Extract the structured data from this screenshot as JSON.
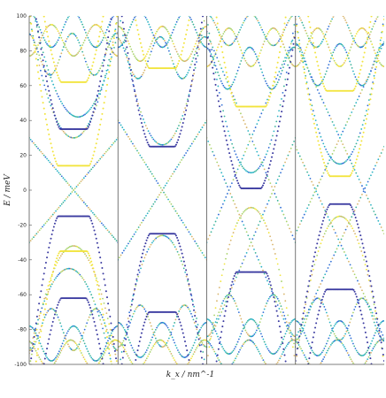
{
  "chart_data": {
    "type": "scatter",
    "title": "",
    "xlabel": "k_x / nm^-1",
    "ylabel": "E / meV",
    "ylim": [
      -100,
      100
    ],
    "yticks": [
      -100,
      -80,
      -60,
      -40,
      -20,
      0,
      20,
      40,
      60,
      80,
      100
    ],
    "xticks_shown": false,
    "panels": 4,
    "grid": false,
    "legend": "none",
    "colors": {
      "dark_blue": "#3a3aa0",
      "blue": "#2f6fd6",
      "cyan": "#2ab3c4",
      "teal": "#3cb39a",
      "green_yellow": "#a9d36b",
      "yellow": "#f2e43c",
      "tan": "#d8b46a"
    },
    "flat_band_levels": [
      {
        "panel": 1,
        "energies": [
          62,
          35,
          14,
          -15,
          -35,
          -62
        ]
      },
      {
        "panel": 2,
        "energies": [
          70,
          25,
          -25,
          -70
        ]
      },
      {
        "panel": 3,
        "energies": [
          48,
          1,
          -47
        ]
      },
      {
        "panel": 4,
        "energies": [
          57,
          8,
          -8,
          -57
        ]
      }
    ]
  }
}
